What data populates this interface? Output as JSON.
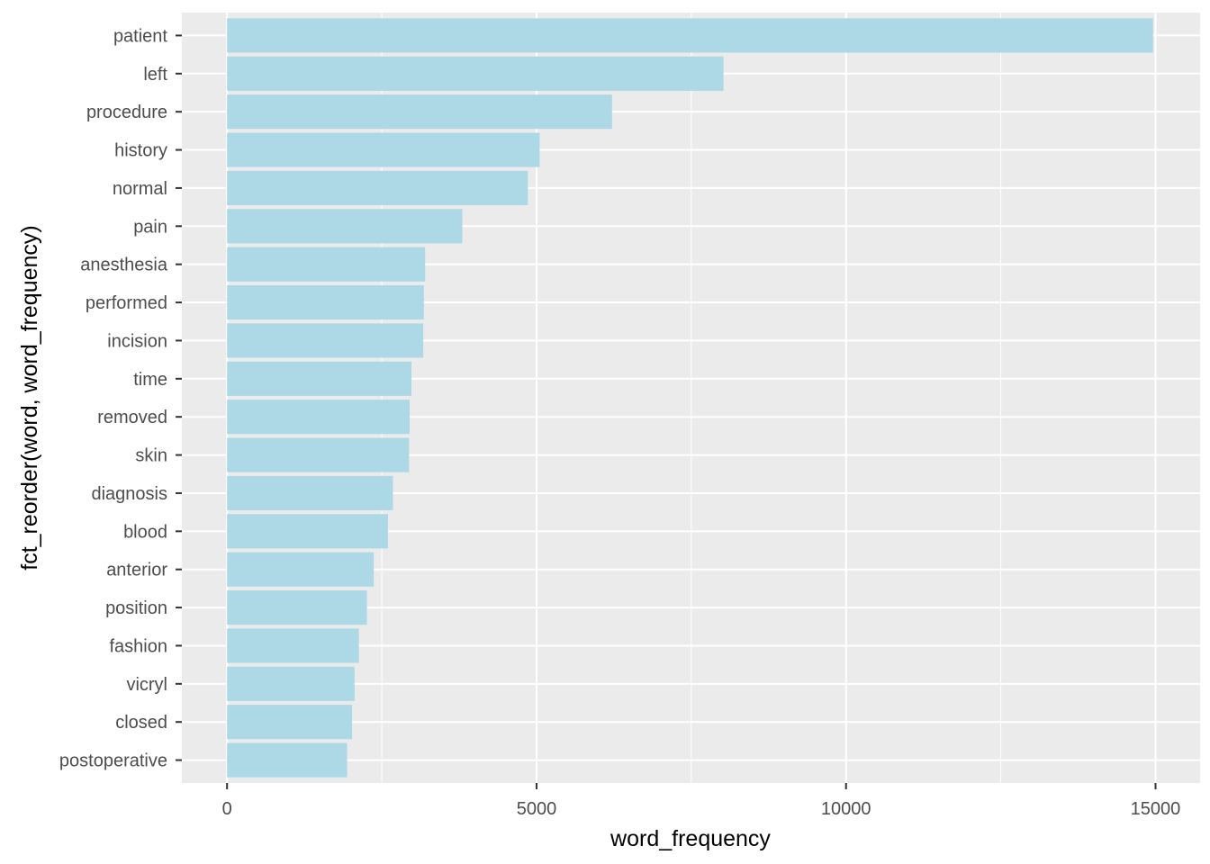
{
  "chart_data": {
    "type": "bar",
    "orientation": "horizontal",
    "xlabel": "word_frequency",
    "ylabel": "fct_reorder(word, word_frequency)",
    "categories": [
      "patient",
      "left",
      "procedure",
      "history",
      "normal",
      "pain",
      "anesthesia",
      "performed",
      "incision",
      "time",
      "removed",
      "skin",
      "diagnosis",
      "blood",
      "anterior",
      "position",
      "fashion",
      "vicryl",
      "closed",
      "postoperative"
    ],
    "values": [
      14960,
      8020,
      6220,
      5050,
      4860,
      3800,
      3200,
      3180,
      3170,
      2980,
      2950,
      2940,
      2680,
      2600,
      2370,
      2260,
      2130,
      2060,
      2020,
      1940
    ],
    "xlim": [
      -730,
      15720
    ],
    "xticks": [
      0,
      5000,
      10000,
      15000
    ],
    "xtick_labels": [
      "0",
      "5000",
      "10000",
      "15000"
    ],
    "grid": true,
    "colors": {
      "bar": "#add8e6",
      "panel": "#ebebeb",
      "grid": "#ffffff",
      "tick": "#333333",
      "tick_text": "#4d4d4d"
    }
  }
}
